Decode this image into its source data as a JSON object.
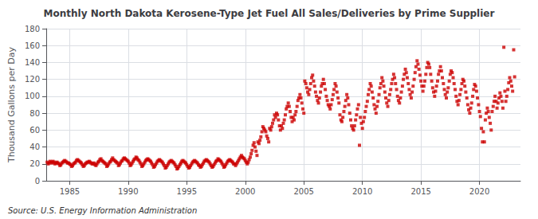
{
  "chart_data": {
    "type": "scatter",
    "title": "Monthly North Dakota Kerosene-Type Jet Fuel All Sales/Deliveries by Prime Supplier",
    "ylabel": "Thousand Gallons per Day",
    "annotation": "Source: U.S. Energy Information Administration",
    "color": "#CC0000",
    "marker": "square",
    "grid": true,
    "xlim": [
      1983.0,
      2023.5
    ],
    "xticks": [
      1985,
      1990,
      1995,
      2000,
      2005,
      2010,
      2015,
      2020
    ],
    "ylim": [
      0,
      180
    ],
    "yticks": [
      0,
      20,
      40,
      60,
      80,
      100,
      120,
      140,
      160,
      180
    ],
    "x": [
      1983.08,
      1983.17,
      1983.25,
      1983.33,
      1983.42,
      1983.5,
      1983.58,
      1983.67,
      1983.75,
      1983.83,
      1983.92,
      1984.0,
      1984.08,
      1984.17,
      1984.25,
      1984.33,
      1984.42,
      1984.5,
      1984.58,
      1984.67,
      1984.75,
      1984.83,
      1984.92,
      1985.0,
      1985.08,
      1985.17,
      1985.25,
      1985.33,
      1985.42,
      1985.5,
      1985.58,
      1985.67,
      1985.75,
      1985.83,
      1985.92,
      1986.0,
      1986.08,
      1986.17,
      1986.25,
      1986.33,
      1986.42,
      1986.5,
      1986.58,
      1986.67,
      1986.75,
      1986.83,
      1986.92,
      1987.0,
      1987.08,
      1987.17,
      1987.25,
      1987.33,
      1987.42,
      1987.5,
      1987.58,
      1987.67,
      1987.75,
      1987.83,
      1987.92,
      1988.0,
      1988.08,
      1988.17,
      1988.25,
      1988.33,
      1988.42,
      1988.5,
      1988.58,
      1988.67,
      1988.75,
      1988.83,
      1988.92,
      1989.0,
      1989.08,
      1989.17,
      1989.25,
      1989.33,
      1989.42,
      1989.5,
      1989.58,
      1989.67,
      1989.75,
      1989.83,
      1989.92,
      1990.0,
      1990.08,
      1990.17,
      1990.25,
      1990.33,
      1990.42,
      1990.5,
      1990.58,
      1990.67,
      1990.75,
      1990.83,
      1990.92,
      1991.0,
      1991.08,
      1991.17,
      1991.25,
      1991.33,
      1991.42,
      1991.5,
      1991.58,
      1991.67,
      1991.75,
      1991.83,
      1991.92,
      1992.0,
      1992.08,
      1992.17,
      1992.25,
      1992.33,
      1992.42,
      1992.5,
      1992.58,
      1992.67,
      1992.75,
      1992.83,
      1992.92,
      1993.0,
      1993.08,
      1993.17,
      1993.25,
      1993.33,
      1993.42,
      1993.5,
      1993.58,
      1993.67,
      1993.75,
      1993.83,
      1993.92,
      1994.0,
      1994.08,
      1994.17,
      1994.25,
      1994.33,
      1994.42,
      1994.5,
      1994.58,
      1994.67,
      1994.75,
      1994.83,
      1994.92,
      1995.0,
      1995.08,
      1995.17,
      1995.25,
      1995.33,
      1995.42,
      1995.5,
      1995.58,
      1995.67,
      1995.75,
      1995.83,
      1995.92,
      1996.0,
      1996.08,
      1996.17,
      1996.25,
      1996.33,
      1996.42,
      1996.5,
      1996.58,
      1996.67,
      1996.75,
      1996.83,
      1996.92,
      1997.0,
      1997.08,
      1997.17,
      1997.25,
      1997.33,
      1997.42,
      1997.5,
      1997.58,
      1997.67,
      1997.75,
      1997.83,
      1997.92,
      1998.0,
      1998.08,
      1998.17,
      1998.25,
      1998.33,
      1998.42,
      1998.5,
      1998.58,
      1998.67,
      1998.75,
      1998.83,
      1998.92,
      1999.0,
      1999.08,
      1999.17,
      1999.25,
      1999.33,
      1999.42,
      1999.5,
      1999.58,
      1999.67,
      1999.75,
      1999.83,
      1999.92,
      2000.0,
      2000.08,
      2000.17,
      2000.25,
      2000.33,
      2000.42,
      2000.5,
      2000.58,
      2000.67,
      2000.75,
      2000.83,
      2000.92,
      2001.0,
      2001.08,
      2001.17,
      2001.25,
      2001.33,
      2001.42,
      2001.5,
      2001.58,
      2001.67,
      2001.75,
      2001.83,
      2001.92,
      2002.0,
      2002.08,
      2002.17,
      2002.25,
      2002.33,
      2002.42,
      2002.5,
      2002.58,
      2002.67,
      2002.75,
      2002.83,
      2002.92,
      2003.0,
      2003.08,
      2003.17,
      2003.25,
      2003.33,
      2003.42,
      2003.5,
      2003.58,
      2003.67,
      2003.75,
      2003.83,
      2003.92,
      2004.0,
      2004.08,
      2004.17,
      2004.25,
      2004.33,
      2004.42,
      2004.5,
      2004.58,
      2004.67,
      2004.75,
      2004.83,
      2004.92,
      2005.0,
      2005.08,
      2005.17,
      2005.25,
      2005.33,
      2005.42,
      2005.5,
      2005.58,
      2005.67,
      2005.75,
      2005.83,
      2005.92,
      2006.0,
      2006.08,
      2006.17,
      2006.25,
      2006.33,
      2006.42,
      2006.5,
      2006.58,
      2006.67,
      2006.75,
      2006.83,
      2006.92,
      2007.0,
      2007.08,
      2007.17,
      2007.25,
      2007.33,
      2007.42,
      2007.5,
      2007.58,
      2007.67,
      2007.75,
      2007.83,
      2007.92,
      2008.0,
      2008.08,
      2008.17,
      2008.25,
      2008.33,
      2008.42,
      2008.5,
      2008.58,
      2008.67,
      2008.75,
      2008.83,
      2008.92,
      2009.0,
      2009.08,
      2009.17,
      2009.25,
      2009.33,
      2009.42,
      2009.5,
      2009.58,
      2009.67,
      2009.75,
      2009.83,
      2009.92,
      2010.0,
      2010.08,
      2010.17,
      2010.25,
      2010.33,
      2010.42,
      2010.5,
      2010.58,
      2010.67,
      2010.75,
      2010.83,
      2010.92,
      2011.0,
      2011.08,
      2011.17,
      2011.25,
      2011.33,
      2011.42,
      2011.5,
      2011.58,
      2011.67,
      2011.75,
      2011.83,
      2011.92,
      2012.0,
      2012.08,
      2012.17,
      2012.25,
      2012.33,
      2012.42,
      2012.5,
      2012.58,
      2012.67,
      2012.75,
      2012.83,
      2012.92,
      2013.0,
      2013.08,
      2013.17,
      2013.25,
      2013.33,
      2013.42,
      2013.5,
      2013.58,
      2013.67,
      2013.75,
      2013.83,
      2013.92,
      2014.0,
      2014.08,
      2014.17,
      2014.25,
      2014.33,
      2014.42,
      2014.5,
      2014.58,
      2014.67,
      2014.75,
      2014.83,
      2014.92,
      2015.0,
      2015.08,
      2015.17,
      2015.25,
      2015.33,
      2015.42,
      2015.5,
      2015.58,
      2015.67,
      2015.75,
      2015.83,
      2015.92,
      2016.0,
      2016.08,
      2016.17,
      2016.25,
      2016.33,
      2016.42,
      2016.5,
      2016.58,
      2016.67,
      2016.75,
      2016.83,
      2016.92,
      2017.0,
      2017.08,
      2017.17,
      2017.25,
      2017.33,
      2017.42,
      2017.5,
      2017.58,
      2017.67,
      2017.75,
      2017.83,
      2017.92,
      2018.0,
      2018.08,
      2018.17,
      2018.25,
      2018.33,
      2018.42,
      2018.5,
      2018.58,
      2018.67,
      2018.75,
      2018.83,
      2018.92,
      2019.0,
      2019.08,
      2019.17,
      2019.25,
      2019.33,
      2019.42,
      2019.5,
      2019.58,
      2019.67,
      2019.75,
      2019.83,
      2019.92,
      2020.0,
      2020.08,
      2020.17,
      2020.25,
      2020.33,
      2020.42,
      2020.5,
      2020.58,
      2020.67,
      2020.75,
      2020.83,
      2020.92,
      2021.0,
      2021.08,
      2021.17,
      2021.25,
      2021.33,
      2021.42,
      2021.5,
      2021.58,
      2021.67,
      2021.75,
      2021.83,
      2021.92,
      2022.0,
      2022.08,
      2022.17,
      2022.25,
      2022.33,
      2022.42,
      2022.5,
      2022.58,
      2022.67,
      2022.75,
      2022.83,
      2022.92,
      2023.0
    ],
    "values": [
      22,
      20,
      21,
      23,
      22,
      21,
      23,
      22,
      20,
      21,
      22,
      21,
      20,
      18,
      19,
      21,
      22,
      23,
      24,
      23,
      22,
      21,
      21,
      20,
      19,
      17,
      18,
      20,
      21,
      22,
      24,
      25,
      24,
      23,
      22,
      21,
      19,
      17,
      18,
      20,
      21,
      22,
      22,
      23,
      22,
      21,
      20,
      20,
      21,
      19,
      18,
      20,
      22,
      23,
      25,
      26,
      24,
      23,
      22,
      21,
      20,
      17,
      18,
      20,
      22,
      23,
      25,
      27,
      25,
      24,
      23,
      22,
      21,
      18,
      19,
      21,
      23,
      24,
      26,
      27,
      26,
      25,
      24,
      23,
      21,
      18,
      19,
      21,
      23,
      25,
      26,
      28,
      27,
      25,
      24,
      22,
      20,
      17,
      18,
      20,
      22,
      24,
      25,
      26,
      25,
      24,
      23,
      21,
      19,
      16,
      17,
      19,
      21,
      23,
      24,
      25,
      24,
      23,
      22,
      20,
      18,
      15,
      16,
      18,
      20,
      22,
      23,
      24,
      23,
      22,
      21,
      19,
      17,
      14,
      15,
      17,
      19,
      21,
      23,
      24,
      23,
      22,
      21,
      19,
      17,
      15,
      16,
      18,
      20,
      22,
      23,
      24,
      23,
      22,
      21,
      19,
      18,
      16,
      17,
      19,
      21,
      23,
      24,
      25,
      24,
      23,
      22,
      20,
      18,
      16,
      17,
      19,
      21,
      23,
      24,
      26,
      25,
      24,
      23,
      21,
      19,
      16,
      17,
      19,
      21,
      23,
      24,
      25,
      24,
      23,
      22,
      20,
      20,
      18,
      20,
      22,
      24,
      26,
      28,
      30,
      28,
      27,
      26,
      24,
      22,
      20,
      22,
      25,
      28,
      32,
      36,
      42,
      45,
      40,
      35,
      30,
      46,
      44,
      48,
      52,
      58,
      64,
      62,
      60,
      58,
      53,
      50,
      46,
      62,
      60,
      64,
      68,
      72,
      78,
      75,
      80,
      78,
      72,
      65,
      60,
      65,
      62,
      68,
      72,
      78,
      85,
      88,
      92,
      88,
      82,
      75,
      70,
      75,
      72,
      78,
      82,
      88,
      95,
      98,
      102,
      98,
      92,
      85,
      80,
      118,
      115,
      110,
      105,
      102,
      108,
      115,
      122,
      125,
      118,
      112,
      105,
      100,
      95,
      92,
      98,
      105,
      112,
      115,
      120,
      115,
      108,
      100,
      95,
      90,
      88,
      85,
      90,
      96,
      102,
      108,
      115,
      112,
      105,
      98,
      92,
      78,
      72,
      70,
      75,
      82,
      88,
      95,
      102,
      98,
      90,
      80,
      72,
      65,
      62,
      60,
      65,
      72,
      78,
      85,
      90,
      42,
      75,
      68,
      62,
      70,
      75,
      82,
      88,
      94,
      102,
      108,
      115,
      112,
      105,
      98,
      90,
      85,
      80,
      88,
      94,
      102,
      110,
      115,
      122,
      118,
      112,
      105,
      98,
      92,
      88,
      95,
      102,
      108,
      115,
      120,
      126,
      122,
      115,
      108,
      100,
      95,
      92,
      98,
      105,
      112,
      120,
      126,
      132,
      128,
      122,
      115,
      108,
      102,
      98,
      105,
      112,
      120,
      128,
      135,
      142,
      138,
      132,
      125,
      118,
      112,
      106,
      112,
      118,
      126,
      134,
      140,
      138,
      134,
      126,
      118,
      110,
      105,
      100,
      106,
      112,
      118,
      126,
      130,
      135,
      130,
      122,
      115,
      108,
      102,
      98,
      105,
      110,
      118,
      126,
      130,
      128,
      122,
      115,
      108,
      100,
      94,
      90,
      95,
      102,
      108,
      115,
      120,
      118,
      112,
      105,
      98,
      90,
      84,
      80,
      86,
      92,
      100,
      108,
      114,
      112,
      106,
      98,
      90,
      82,
      76,
      62,
      46,
      58,
      46,
      72,
      80,
      86,
      82,
      75,
      68,
      60,
      82,
      88,
      94,
      100,
      94,
      86,
      92,
      98,
      104,
      100,
      94,
      86,
      158,
      106,
      94,
      100,
      108,
      116,
      122,
      118,
      112,
      106,
      155,
      123
    ]
  }
}
